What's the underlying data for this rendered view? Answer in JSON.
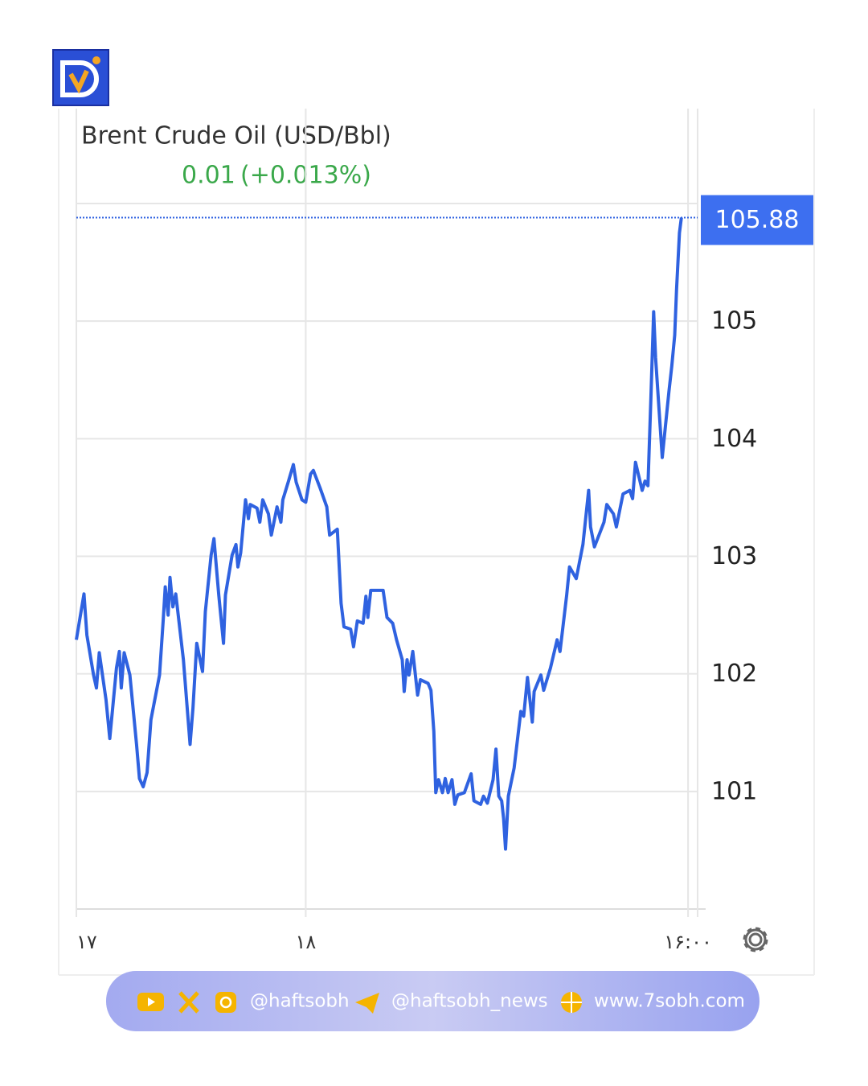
{
  "chart_data": {
    "type": "line",
    "title": "Brent Crude Oil (USD/Bbl)",
    "change": "0.01",
    "change_pct": "(+0.013%)",
    "color": "#2f62e0",
    "x": [
      0,
      0.8,
      1.1,
      1.8,
      2.1,
      2.4,
      3.1,
      3.5,
      4.2,
      4.5,
      4.7,
      5.0,
      5.6,
      6.3,
      6.6,
      7.0,
      7.4,
      7.8,
      8.7,
      9.1,
      9.3,
      9.6,
      9.8,
      10.1,
      10.4,
      11.2,
      11.9,
      12.2,
      12.6,
      13.2,
      13.5,
      14.1,
      14.4,
      14.9,
      15.4,
      15.6,
      16.3,
      16.7,
      16.9,
      17.2,
      17.7,
      18.0,
      18.2,
      18.9,
      19.2,
      19.5,
      20.1,
      20.4,
      21.0,
      21.4,
      21.6,
      22.2,
      22.7,
      23.0,
      23.6,
      24.0,
      24.5,
      24.8,
      25.5,
      26.2,
      26.5,
      27.3,
      27.7,
      28.0,
      28.7,
      29.0,
      29.4,
      30.0,
      30.3,
      30.5,
      30.8,
      31.5,
      32.1,
      32.5,
      33.1,
      33.5,
      34.1,
      34.3,
      34.6,
      34.8,
      35.2,
      35.7,
      36.0,
      36.8,
      37.1,
      37.4,
      37.6,
      37.9,
      38.3,
      38.6,
      38.9,
      39.3,
      39.6,
      39.9,
      40.6,
      41.3,
      41.6,
      42.3,
      42.6,
      43.0,
      43.6,
      43.9,
      44.2,
      44.5,
      44.7,
      44.9,
      45.2,
      45.8,
      46.5,
      46.8,
      47.2,
      47.7,
      47.9,
      48.6,
      48.9,
      49.6,
      50.3,
      50.6,
      51.3,
      51.6,
      52.3,
      53.0,
      53.6,
      53.8,
      54.2,
      55.2,
      55.5,
      56.2,
      56.5,
      57.2,
      57.9,
      58.2,
      58.5,
      59.2,
      59.5,
      59.8,
      60.1,
      60.4,
      60.6,
      61.3,
      62.0,
      62.3,
      62.6,
      62.8,
      63.1,
      63.3
    ],
    "values": [
      102.29,
      102.68,
      102.33,
      101.99,
      101.88,
      102.18,
      101.78,
      101.45,
      102.05,
      102.19,
      101.88,
      102.18,
      101.99,
      101.4,
      101.11,
      101.04,
      101.16,
      101.61,
      101.99,
      102.47,
      102.74,
      102.5,
      102.82,
      102.57,
      102.68,
      102.12,
      101.4,
      101.71,
      102.26,
      102.02,
      102.53,
      103.01,
      103.15,
      102.67,
      102.26,
      102.67,
      103.01,
      103.1,
      102.91,
      103.03,
      103.48,
      103.32,
      103.44,
      103.41,
      103.29,
      103.48,
      103.36,
      103.18,
      103.42,
      103.29,
      103.48,
      103.64,
      103.78,
      103.63,
      103.48,
      103.46,
      103.7,
      103.73,
      103.58,
      103.42,
      103.18,
      103.23,
      102.6,
      102.4,
      102.38,
      102.23,
      102.45,
      102.43,
      102.66,
      102.48,
      102.71,
      102.71,
      102.71,
      102.48,
      102.43,
      102.29,
      102.12,
      101.85,
      102.12,
      101.99,
      102.19,
      101.82,
      101.95,
      101.92,
      101.86,
      101.51,
      100.99,
      101.1,
      100.99,
      101.11,
      100.99,
      101.1,
      100.89,
      100.97,
      100.99,
      101.15,
      100.92,
      100.89,
      100.96,
      100.9,
      101.1,
      101.36,
      100.96,
      100.92,
      100.77,
      100.51,
      100.96,
      101.2,
      101.68,
      101.64,
      101.97,
      101.59,
      101.85,
      101.99,
      101.86,
      102.05,
      102.29,
      102.19,
      102.67,
      102.91,
      102.81,
      103.1,
      103.56,
      103.25,
      103.08,
      103.29,
      103.44,
      103.36,
      103.25,
      103.53,
      103.56,
      103.49,
      103.8,
      103.56,
      103.64,
      103.6,
      104.31,
      105.08,
      104.69,
      103.84,
      104.4,
      104.62,
      104.88,
      105.27,
      105.75,
      105.88
    ],
    "xlim": [
      0,
      65
    ],
    "xticks": [
      {
        "value": 0,
        "label": "۱۷"
      },
      {
        "value": 24,
        "label": "۱۸"
      },
      {
        "value": 64,
        "label": "۱۶:۰۰"
      }
    ],
    "ylim": [
      100,
      106
    ],
    "yticks": [
      101,
      102,
      103,
      104,
      105
    ],
    "grid": true
  },
  "footer": {
    "telegram": "@haftsobh",
    "telegram_news": "@haftsobh_news",
    "website": "www.7sobh.com"
  }
}
